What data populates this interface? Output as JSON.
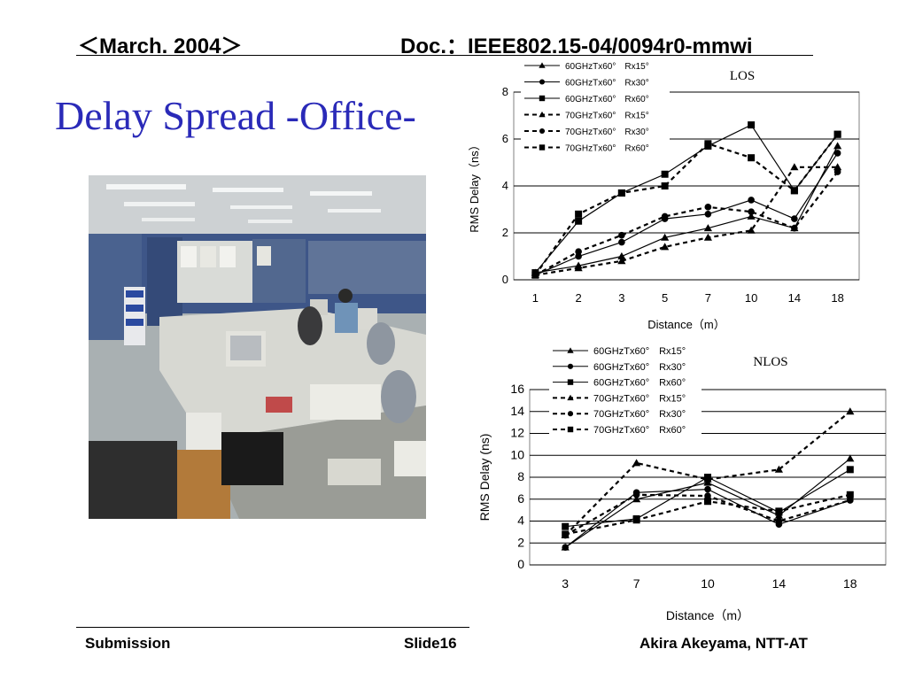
{
  "header": {
    "left": "＜March. 2004＞",
    "right": "Doc.：IEEE802.15-04/0094r0-mmwi"
  },
  "slide": {
    "title": "Delay Spread -Office-"
  },
  "footer": {
    "left": "Submission",
    "center": "Slide16",
    "right": "Akira Akeyama, NTT-AT"
  },
  "chart_data": [
    {
      "type": "line",
      "title": "LOS",
      "xlabel": "Distance（m）",
      "ylabel": "RMS Delay（ns）",
      "categories": [
        "1",
        "2",
        "3",
        "5",
        "7",
        "10",
        "14",
        "18"
      ],
      "ylim": [
        0,
        8
      ],
      "yticks": [
        0,
        2,
        4,
        6,
        8
      ],
      "grid": "horizontal",
      "legend": "top-left",
      "series": [
        {
          "name": "60GHzTx60°　Rx15°",
          "marker": "triangle",
          "dash": "solid",
          "values": [
            0.3,
            0.6,
            1.0,
            1.8,
            2.2,
            2.7,
            2.2,
            5.7
          ]
        },
        {
          "name": "60GHzTx60°　Rx30°",
          "marker": "circle",
          "dash": "solid",
          "values": [
            0.2,
            1.0,
            1.6,
            2.6,
            2.8,
            3.4,
            2.6,
            5.4
          ]
        },
        {
          "name": "60GHzTx60°　Rx60°",
          "marker": "square",
          "dash": "solid",
          "values": [
            0.3,
            2.5,
            3.7,
            4.5,
            5.7,
            6.6,
            3.8,
            6.2
          ]
        },
        {
          "name": "70GHzTx60°　Rx15°",
          "marker": "triangle",
          "dash": "dashed",
          "values": [
            0.2,
            0.5,
            0.8,
            1.4,
            1.8,
            2.1,
            4.8,
            4.8
          ]
        },
        {
          "name": "70GHzTx60°　Rx30°",
          "marker": "circle",
          "dash": "dashed",
          "values": [
            0.2,
            1.2,
            1.9,
            2.7,
            3.1,
            2.9,
            2.2,
            4.6
          ]
        },
        {
          "name": "70GHzTx60°　Rx60°",
          "marker": "square",
          "dash": "dashed",
          "values": [
            0.2,
            2.8,
            3.7,
            4.0,
            5.8,
            5.2,
            3.8,
            6.2
          ]
        }
      ]
    },
    {
      "type": "line",
      "title": "NLOS",
      "xlabel": "Distance（m）",
      "ylabel": "RMS Delay (ns)",
      "categories": [
        "3",
        "7",
        "10",
        "14",
        "18"
      ],
      "ylim": [
        0,
        16
      ],
      "yticks": [
        0,
        2,
        4,
        6,
        8,
        10,
        12,
        14,
        16
      ],
      "grid": "horizontal",
      "legend": "top-left",
      "series": [
        {
          "name": "60GHzTx60°　Rx15°",
          "marker": "triangle",
          "dash": "solid",
          "values": [
            1.6,
            6.0,
            7.5,
            4.5,
            9.7
          ]
        },
        {
          "name": "60GHzTx60°　Rx30°",
          "marker": "circle",
          "dash": "solid",
          "values": [
            1.6,
            6.6,
            6.9,
            3.7,
            5.9
          ]
        },
        {
          "name": "60GHzTx60°　Rx60°",
          "marker": "square",
          "dash": "solid",
          "values": [
            3.5,
            4.2,
            8.0,
            4.8,
            8.7
          ]
        },
        {
          "name": "70GHzTx60°　Rx15°",
          "marker": "triangle",
          "dash": "dashed",
          "values": [
            2.7,
            9.3,
            7.8,
            8.7,
            14.0
          ]
        },
        {
          "name": "70GHzTx60°　Rx30°",
          "marker": "circle",
          "dash": "dashed",
          "values": [
            2.7,
            6.4,
            6.3,
            4.0,
            5.9
          ]
        },
        {
          "name": "70GHzTx60°　Rx60°",
          "marker": "square",
          "dash": "dashed",
          "values": [
            2.8,
            4.1,
            5.8,
            4.9,
            6.4
          ]
        }
      ]
    }
  ],
  "colors": {
    "title": "#2a2ab8",
    "plot_area": "#ffffff",
    "photo_wall": "#3e5688",
    "photo_ceiling": "#c9ced0",
    "photo_floor": "#8c8f8a"
  }
}
